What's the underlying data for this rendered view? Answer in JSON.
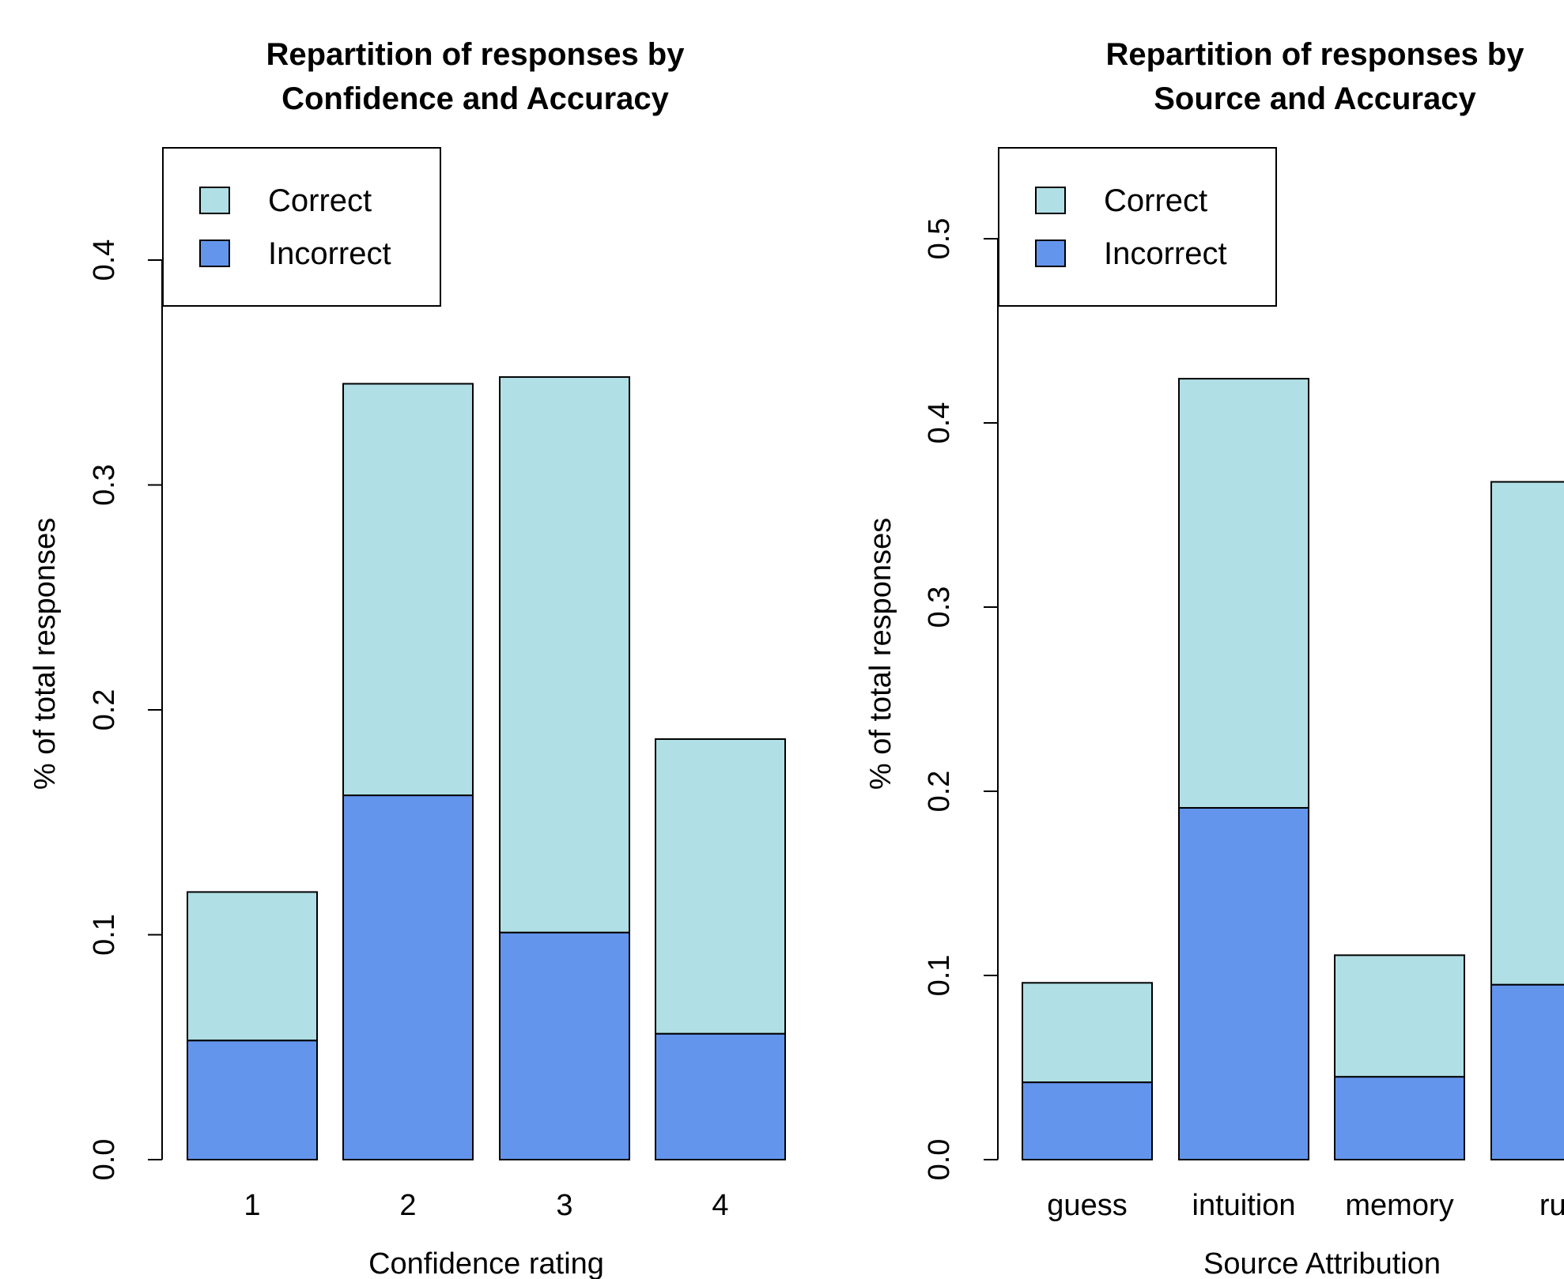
{
  "colors": {
    "correct": "#b0dfe5",
    "incorrect": "#6495ed",
    "stroke": "#000000"
  },
  "chart_data": [
    {
      "type": "bar",
      "stacked": true,
      "title": [
        "Repartition of responses by",
        "Confidence and Accuracy"
      ],
      "xlabel": "Confidence rating",
      "ylabel": "% of total responses",
      "ylim": [
        0,
        0.45
      ],
      "yticks": [
        0.0,
        0.1,
        0.2,
        0.3,
        0.4
      ],
      "ytick_labels": [
        "0.0",
        "0.1",
        "0.2",
        "0.3",
        "0.4"
      ],
      "legend_position": "top-left",
      "categories": [
        "1",
        "2",
        "3",
        "4"
      ],
      "series": [
        {
          "name": "Incorrect",
          "values": [
            0.053,
            0.162,
            0.101,
            0.056
          ]
        },
        {
          "name": "Correct",
          "values": [
            0.066,
            0.183,
            0.247,
            0.131
          ]
        }
      ]
    },
    {
      "type": "bar",
      "stacked": true,
      "title": [
        "Repartition of responses by",
        "Source and Accuracy"
      ],
      "xlabel": "Source Attribution",
      "ylabel": "% of total responses",
      "ylim": [
        0,
        0.55
      ],
      "yticks": [
        0.0,
        0.1,
        0.2,
        0.3,
        0.4,
        0.5
      ],
      "ytick_labels": [
        "0.0",
        "0.1",
        "0.2",
        "0.3",
        "0.4",
        "0.5"
      ],
      "legend_position": "top-left",
      "categories": [
        "guess",
        "intuition",
        "memory",
        "rul"
      ],
      "series": [
        {
          "name": "Incorrect",
          "values": [
            0.042,
            0.191,
            0.045,
            0.095
          ]
        },
        {
          "name": "Correct",
          "values": [
            0.054,
            0.233,
            0.066,
            0.273
          ]
        }
      ]
    }
  ]
}
